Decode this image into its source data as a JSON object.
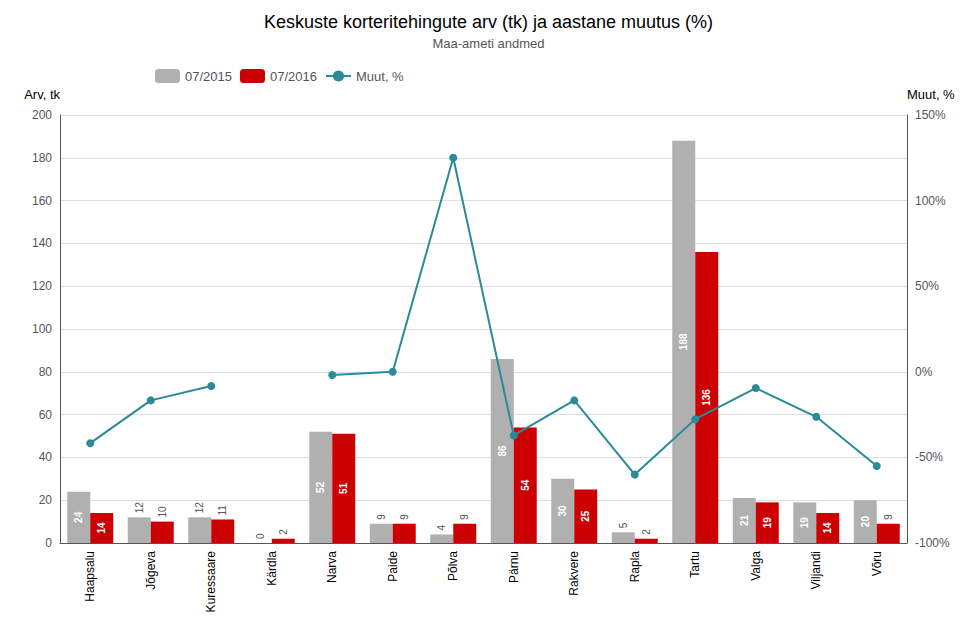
{
  "chart_data": {
    "type": "bar",
    "title": "Keskuste korteritehingute arv (tk) ja aastane muutus (%)",
    "subtitle": "Maa-ameti andmed",
    "ylabel": "Arv, tk",
    "y2label": "Muut, %",
    "categories": [
      "Haapsalu",
      "Jõgeva",
      "Kuressaare",
      "Kärdla",
      "Narva",
      "Paide",
      "Põlva",
      "Pärnu",
      "Rakvere",
      "Rapla",
      "Tartu",
      "Valga",
      "Viljandi",
      "Võru"
    ],
    "series": [
      {
        "name": "07/2015",
        "type": "bar",
        "color": "#b0b0b0",
        "data_labels": true,
        "values": [
          24,
          12,
          12,
          0,
          52,
          9,
          4,
          86,
          30,
          5,
          188,
          21,
          19,
          20
        ]
      },
      {
        "name": "07/2016",
        "type": "bar",
        "color": "#cc0000",
        "data_labels": true,
        "values": [
          14,
          10,
          11,
          2,
          51,
          9,
          9,
          54,
          25,
          2,
          136,
          19,
          14,
          9
        ]
      },
      {
        "name": "Muut, %",
        "type": "line",
        "axis": "y2",
        "color": "#2b8a99",
        "marker": "circle",
        "values": [
          -41.7,
          -16.7,
          -8.3,
          null,
          -1.9,
          0.0,
          125.0,
          -37.2,
          -16.7,
          -60.0,
          -27.7,
          -9.5,
          -26.3,
          -55.0
        ]
      }
    ],
    "ylim": [
      0,
      200
    ],
    "yticks": [
      0,
      20,
      40,
      60,
      80,
      100,
      120,
      140,
      160,
      180,
      200
    ],
    "y2lim": [
      -100,
      150
    ],
    "y2ticks": [
      {
        "value": -100,
        "label": "-100%"
      },
      {
        "value": -50,
        "label": "-50%"
      },
      {
        "value": 0,
        "label": "0%"
      },
      {
        "value": 50,
        "label": "50%"
      },
      {
        "value": 100,
        "label": "100%"
      },
      {
        "value": 150,
        "label": "150%"
      }
    ],
    "grid": true,
    "legend": "upper left"
  }
}
